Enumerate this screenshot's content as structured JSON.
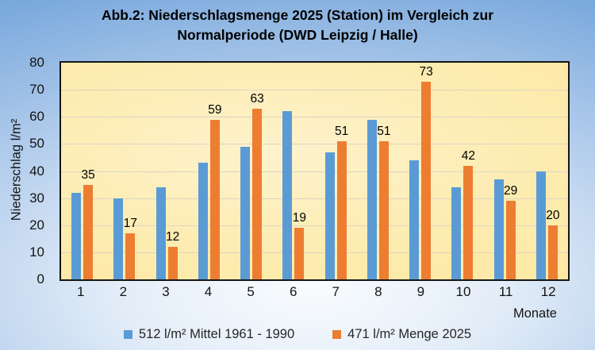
{
  "title": {
    "line1": "Abb.2: Niederschlagsmenge 2025 (Station) im Vergleich zur",
    "line2": "Normalperiode (DWD Leipzig / Halle)"
  },
  "y_axis": {
    "label": "Niederschlag l/m²",
    "min": 0,
    "max": 80,
    "tick_step": 10,
    "ticks": [
      80,
      70,
      60,
      50,
      40,
      30,
      20,
      10,
      0
    ]
  },
  "x_axis": {
    "label": "Monate",
    "categories": [
      "1",
      "2",
      "3",
      "4",
      "5",
      "6",
      "7",
      "8",
      "9",
      "10",
      "11",
      "12"
    ]
  },
  "legend": {
    "items": [
      {
        "key": "mittel",
        "label": "512 l/m² Mittel 1961 - 1990",
        "color": "#5B9BD5"
      },
      {
        "key": "menge2025",
        "label": "471 l/m² Menge 2025",
        "color": "#ED7D31"
      }
    ]
  },
  "colors": {
    "series_blue": "#5B9BD5",
    "series_orange": "#ED7D31",
    "plot_fill": "#fdecb0",
    "gridline": "#dcd5c4",
    "plot_border": "#161616",
    "background_edge": "#72a4da",
    "background_center": "#f9fcfe"
  },
  "chart_data": {
    "type": "bar",
    "title": "Abb.2: Niederschlagsmenge 2025 (Station) im Vergleich zur Normalperiode (DWD Leipzig / Halle)",
    "xlabel": "Monate",
    "ylabel": "Niederschlag l/m²",
    "ylim": [
      0,
      80
    ],
    "grid": true,
    "legend_position": "bottom",
    "categories": [
      "1",
      "2",
      "3",
      "4",
      "5",
      "6",
      "7",
      "8",
      "9",
      "10",
      "11",
      "12"
    ],
    "series": [
      {
        "key": "mittel",
        "name": "512 l/m² Mittel 1961 - 1990",
        "color": "#5B9BD5",
        "values": [
          32,
          30,
          34,
          43,
          49,
          62,
          47,
          59,
          44,
          34,
          37,
          40
        ],
        "value_labels_shown": false
      },
      {
        "key": "menge2025",
        "name": "471 l/m² Menge 2025",
        "color": "#ED7D31",
        "values": [
          35,
          17,
          12,
          59,
          63,
          19,
          51,
          51,
          73,
          42,
          29,
          20
        ],
        "value_labels_shown": true
      }
    ]
  }
}
